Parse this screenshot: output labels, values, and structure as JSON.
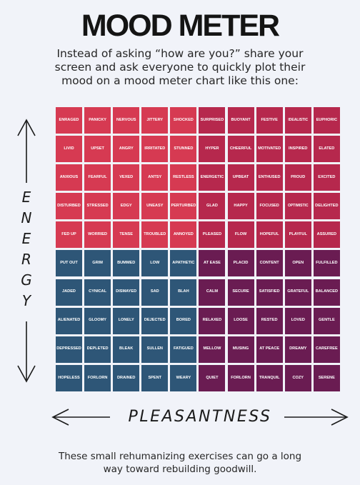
{
  "title": "MOOD METER",
  "intro": "Instead of asking “how are you?” share your screen and ask everyone to quickly plot their mood on a mood meter chart like this one:",
  "energy_label": "ENERGY",
  "pleasantness_label": "PLEASANTNESS",
  "outro": "These small rehumanizing exercises can go a long way toward rebuilding goodwill.",
  "colors": {
    "red_quadrant": "#d63a52",
    "pink_quadrant": "#b6284d",
    "blue_quadrant": "#2e5677",
    "purple_quadrant": "#6a1c52"
  },
  "mood_grid": [
    [
      "ENRAGED",
      "PANICKY",
      "NERVOUS",
      "JITTERY",
      "SHOCKED",
      "SURPRISED",
      "BUOYANT",
      "FESTIVE",
      "IDEALISTIC",
      "EUPHORIC"
    ],
    [
      "LIVID",
      "UPSET",
      "ANGRY",
      "IRRITATED",
      "STUNNED",
      "HYPER",
      "CHEERFUL",
      "MOTIVATED",
      "INSPIRED",
      "ELATED"
    ],
    [
      "ANXIOUS",
      "FEARFUL",
      "VEXED",
      "ANTSY",
      "RESTLESS",
      "ENERGETIC",
      "UPBEAT",
      "ENTHUSED",
      "PROUD",
      "EXCITED"
    ],
    [
      "DISTURBED",
      "STRESSED",
      "EDGY",
      "UNEASY",
      "PERTURBED",
      "GLAD",
      "HAPPY",
      "FOCUSED",
      "OPTIMISTIC",
      "DELIGHTED"
    ],
    [
      "FED UP",
      "WORRIED",
      "TENSE",
      "TROUBLED",
      "ANNOYED",
      "PLEASED",
      "FLOW",
      "HOPEFUL",
      "PLAYFUL",
      "ASSURED"
    ],
    [
      "PUT OUT",
      "GRIM",
      "BUMMED",
      "LOW",
      "APATHETIC",
      "AT EASE",
      "PLACID",
      "CONTENT",
      "OPEN",
      "FULFILLED"
    ],
    [
      "JADED",
      "CYNICAL",
      "DISMAYED",
      "SAD",
      "BLAH",
      "CALM",
      "SECURE",
      "SATISFIED",
      "GRATEFUL",
      "BALANCED"
    ],
    [
      "ALIENATED",
      "GLOOMY",
      "LONELY",
      "DEJECTED",
      "BORED",
      "RELAXED",
      "LOOSE",
      "RESTED",
      "LOVED",
      "GENTLE"
    ],
    [
      "DEPRESSED",
      "DEPLETED",
      "BLEAK",
      "SULLEN",
      "FATIGUED",
      "MELLOW",
      "MUSING",
      "AT PEACE",
      "DREAMY",
      "CAREFREE"
    ],
    [
      "HOPELESS",
      "FORLORN",
      "DRAINED",
      "SPENT",
      "WEARY",
      "QUIET",
      "FORLORN",
      "TRANQUIL",
      "COZY",
      "SERENE"
    ]
  ]
}
